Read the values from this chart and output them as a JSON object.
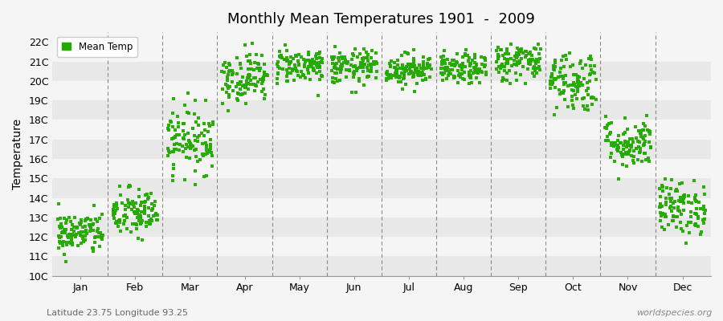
{
  "title": "Monthly Mean Temperatures 1901  -  2009",
  "ylabel": "Temperature",
  "bottom_left": "Latitude 23.75 Longitude 93.25",
  "bottom_right": "worldspecies.org",
  "legend_label": "Mean Temp",
  "dot_color": "#22aa00",
  "band_color_odd": "#e8e8e8",
  "band_color_even": "#f5f5f5",
  "fig_bg": "#f5f5f5",
  "yticks": [
    10,
    11,
    12,
    13,
    14,
    15,
    16,
    17,
    18,
    19,
    20,
    21,
    22
  ],
  "ylim": [
    10.0,
    22.5
  ],
  "months": [
    "Jan",
    "Feb",
    "Mar",
    "Apr",
    "May",
    "Jun",
    "Jul",
    "Aug",
    "Sep",
    "Oct",
    "Nov",
    "Dec"
  ],
  "month_means": [
    12.2,
    13.2,
    17.0,
    20.2,
    20.8,
    20.7,
    20.6,
    20.6,
    21.0,
    20.0,
    16.8,
    13.5
  ],
  "month_stds": [
    0.55,
    0.65,
    0.85,
    0.65,
    0.45,
    0.45,
    0.4,
    0.38,
    0.5,
    0.8,
    0.65,
    0.7
  ],
  "n_years": 109,
  "seed": 42
}
